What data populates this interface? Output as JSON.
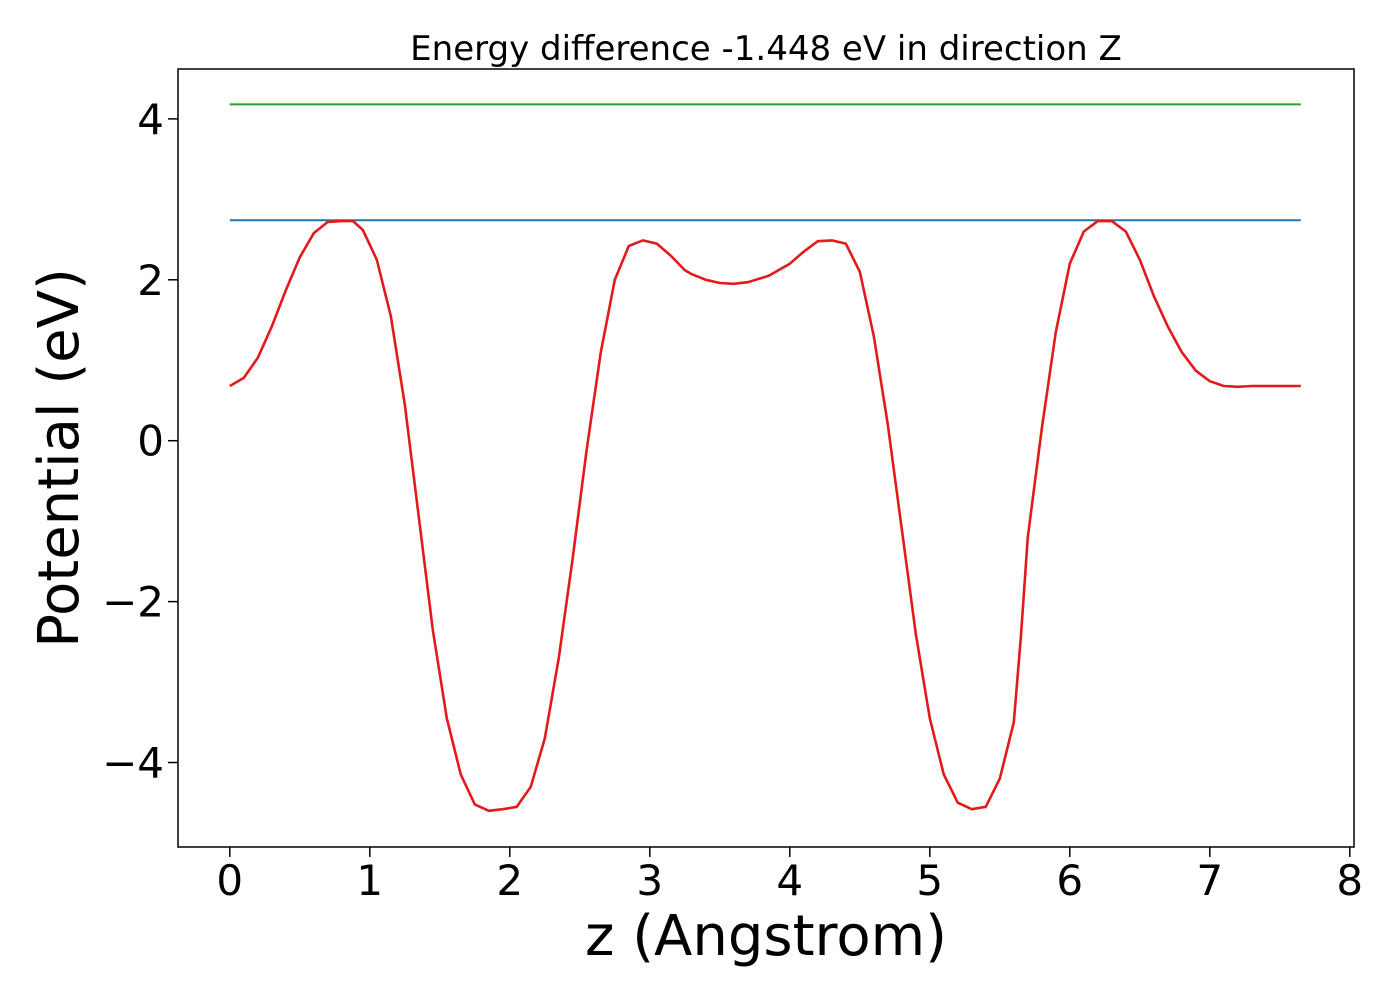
{
  "chart_data": {
    "type": "line",
    "title": "Energy difference -1.448 eV in direction Z",
    "xlabel": "z (Angstrom)",
    "ylabel": "Potential (eV)",
    "xlim": [
      -0.37,
      8.03
    ],
    "ylim": [
      -5.05,
      4.62
    ],
    "xticks": [
      0,
      1,
      2,
      3,
      4,
      5,
      6,
      7,
      8
    ],
    "xtick_labels": [
      "0",
      "1",
      "2",
      "3",
      "4",
      "5",
      "6",
      "7",
      "8"
    ],
    "yticks": [
      4,
      2,
      0,
      -2,
      -4
    ],
    "ytick_labels": [
      "4",
      "2",
      "0",
      "−2",
      "−4"
    ],
    "grid": false,
    "legend": "none",
    "series": [
      {
        "color": "#2ca02c",
        "x": [
          0.0,
          7.65
        ],
        "y": [
          4.18,
          4.18
        ]
      },
      {
        "color": "#1f77b4",
        "x": [
          0.0,
          7.65
        ],
        "y": [
          2.74,
          2.74
        ]
      },
      {
        "color": "#e31a1c",
        "x": [
          0.0,
          0.1,
          0.2,
          0.3,
          0.4,
          0.5,
          0.6,
          0.7,
          0.8,
          0.88,
          0.95,
          1.05,
          1.15,
          1.25,
          1.35,
          1.45,
          1.55,
          1.65,
          1.75,
          1.85,
          1.95,
          2.05,
          2.15,
          2.25,
          2.35,
          2.45,
          2.55,
          2.65,
          2.75,
          2.85,
          2.95,
          3.05,
          3.15,
          3.25,
          3.3,
          3.4,
          3.5,
          3.6,
          3.7,
          3.85,
          4.0,
          4.1,
          4.2,
          4.3,
          4.4,
          4.5,
          4.6,
          4.7,
          4.8,
          4.9,
          5.0,
          5.1,
          5.2,
          5.3,
          5.4,
          5.5,
          5.6,
          5.65,
          5.7,
          5.8,
          5.9,
          6.0,
          6.1,
          6.2,
          6.3,
          6.4,
          6.5,
          6.6,
          6.7,
          6.8,
          6.9,
          7.0,
          7.1,
          7.2,
          7.3,
          7.4,
          7.5,
          7.65
        ],
        "y": [
          0.68,
          0.78,
          1.03,
          1.42,
          1.87,
          2.28,
          2.58,
          2.72,
          2.73,
          2.73,
          2.62,
          2.25,
          1.55,
          0.45,
          -0.95,
          -2.35,
          -3.45,
          -4.15,
          -4.52,
          -4.6,
          -4.58,
          -4.55,
          -4.3,
          -3.7,
          -2.7,
          -1.45,
          -0.1,
          1.1,
          2.0,
          2.42,
          2.49,
          2.45,
          2.3,
          2.12,
          2.07,
          2.0,
          1.96,
          1.95,
          1.97,
          2.05,
          2.2,
          2.35,
          2.48,
          2.49,
          2.45,
          2.1,
          1.3,
          0.2,
          -1.1,
          -2.4,
          -3.45,
          -4.15,
          -4.5,
          -4.58,
          -4.55,
          -4.2,
          -3.5,
          -2.45,
          -1.2,
          0.15,
          1.35,
          2.2,
          2.6,
          2.73,
          2.73,
          2.6,
          2.25,
          1.8,
          1.42,
          1.1,
          0.87,
          0.74,
          0.68,
          0.67,
          0.68,
          0.68,
          0.68,
          0.68
        ]
      }
    ]
  }
}
